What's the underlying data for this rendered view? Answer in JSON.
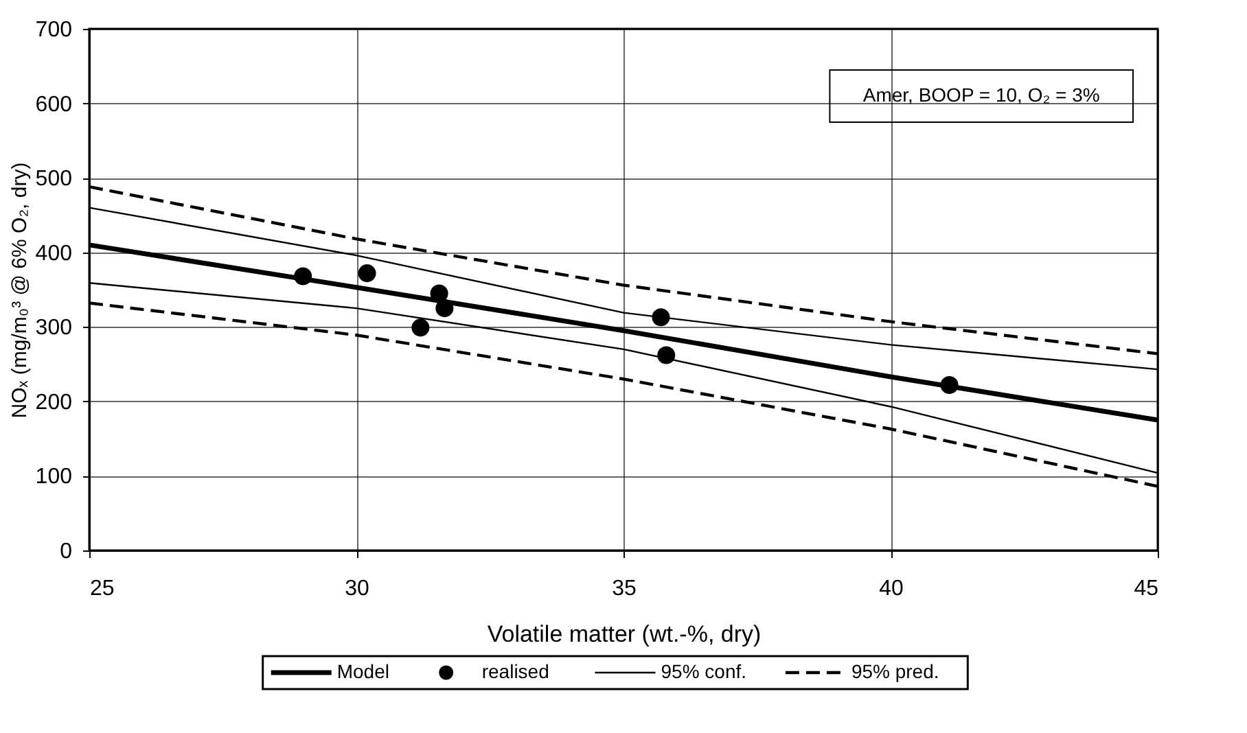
{
  "chart_data": {
    "type": "line",
    "xlabel": "Volatile matter (wt.-%, dry)",
    "ylabel": "NOₓ (mg/m₀³ @ 6% O₂, dry)",
    "xlim": [
      25,
      45
    ],
    "xticks": [
      25,
      30,
      35,
      40,
      45
    ],
    "ylim": [
      0,
      700
    ],
    "yticks": [
      0,
      100,
      200,
      300,
      400,
      500,
      600,
      700
    ],
    "grid": true,
    "legend": "bottom",
    "annotations": [
      "Amer, BOOP = 10, O₂ = 3%"
    ],
    "series": [
      {
        "name": "Model",
        "type": "line",
        "line_style": "solid",
        "color": "#000000",
        "x": [
          25,
          30,
          35,
          40,
          45
        ],
        "values": [
          410,
          353,
          295,
          233,
          175
        ]
      },
      {
        "name": "realised",
        "type": "scatter",
        "marker": "circle",
        "color": "#000000",
        "x": [
          29.0,
          30.2,
          31.2,
          31.55,
          31.65,
          35.7,
          35.8,
          41.1
        ],
        "values": [
          368,
          372,
          299,
          345,
          325,
          313,
          262,
          222
        ]
      },
      {
        "name": "95% conf.",
        "type": "line",
        "line_style": "solid",
        "color": "#000000",
        "x": [
          25,
          30,
          35,
          40,
          45
        ],
        "values": [
          460,
          396,
          319,
          276,
          243
        ]
      },
      {
        "type": "line",
        "line_style": "solid",
        "color": "#000000",
        "x": [
          25,
          30,
          35,
          40,
          45
        ],
        "values": [
          359,
          325,
          270,
          193,
          104
        ]
      },
      {
        "name": "95% pred.",
        "type": "line",
        "line_style": "dashed",
        "color": "#000000",
        "x": [
          25,
          30,
          35,
          40,
          45
        ],
        "values": [
          488,
          418,
          356,
          307,
          264
        ]
      },
      {
        "type": "line",
        "line_style": "dashed",
        "color": "#000000",
        "x": [
          25,
          30,
          35,
          40,
          45
        ],
        "values": [
          332,
          289,
          230,
          163,
          86
        ]
      }
    ]
  }
}
